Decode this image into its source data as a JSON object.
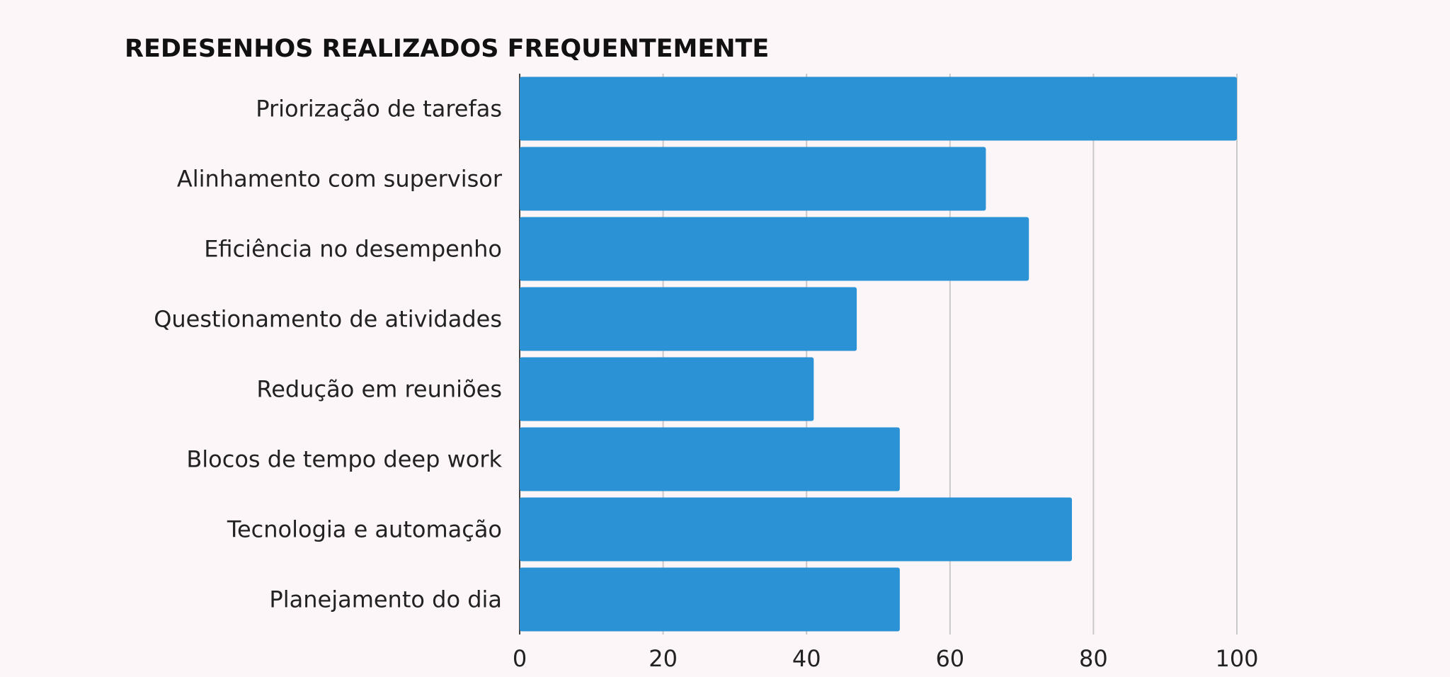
{
  "chart_data": {
    "type": "bar",
    "orientation": "horizontal",
    "title": "REDESENHOS REALIZADOS FREQUENTEMENTE",
    "categories": [
      "Priorização de tarefas",
      "Alinhamento com supervisor",
      "Eficiência no desempenho",
      "Questionamento de atividades",
      "Redução em reuniões",
      "Blocos de tempo deep work",
      "Tecnologia e automação",
      "Planejamento do dia"
    ],
    "values": [
      100,
      65,
      71,
      47,
      41,
      53,
      77,
      53
    ],
    "xlim": [
      0,
      100
    ],
    "xticks": [
      0,
      20,
      40,
      60,
      80,
      100
    ],
    "grid": true,
    "legend": "none",
    "bar_color": "#2b92d5"
  }
}
